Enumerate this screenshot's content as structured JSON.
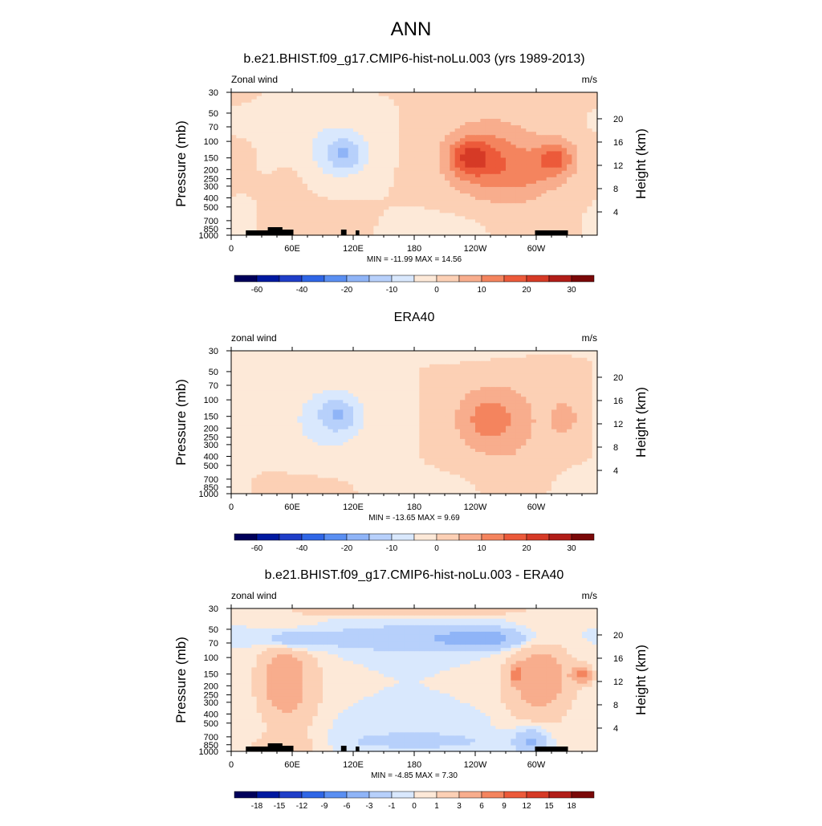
{
  "figure": {
    "title": "ANN"
  },
  "chart_data": [
    {
      "type": "heatmap",
      "title": "b.e21.BHIST.f09_g17.CMIP6-hist-noLu.003 (yrs 1989-2013)",
      "left_label": "Zonal wind",
      "right_label": "m/s",
      "ylabel": "Pressure (mb)",
      "y2label": "Height (km)",
      "xticks": [
        "0",
        "60E",
        "120E",
        "180",
        "120W",
        "60W"
      ],
      "yticks": [
        "30",
        "50",
        "70",
        "100",
        "150",
        "200",
        "250",
        "300",
        "400",
        "500",
        "700",
        "850",
        "1000"
      ],
      "y2ticks": [
        "20",
        "16",
        "12",
        "8",
        "4"
      ],
      "minmax": "MIN = -11.99  MAX =  14.56",
      "colorbar_labels": [
        "-60",
        "-40",
        "-20",
        "-10",
        "0",
        "10",
        "20",
        "30"
      ],
      "colorbar_levels": [
        -70,
        -60,
        -50,
        -40,
        -30,
        -20,
        -15,
        -10,
        -5,
        0,
        5,
        10,
        15,
        20,
        25,
        30,
        35
      ],
      "topography": true,
      "features": [
        {
          "lon": 165,
          "p": 25,
          "w": 150,
          "h": 10,
          "v": 1
        },
        {
          "lon": 20,
          "p": 62,
          "w": 60,
          "h": 14,
          "v": -3
        },
        {
          "lon": 100,
          "p": 118,
          "w": 98,
          "h": 54,
          "v": -6
        },
        {
          "lon": 112,
          "p": 135,
          "w": 48,
          "h": 24,
          "v": -11
        },
        {
          "lon": 265,
          "p": 158,
          "w": 158,
          "h": 86,
          "v": 4
        },
        {
          "lon": 252,
          "p": 152,
          "w": 105,
          "h": 50,
          "v": 8.5
        },
        {
          "lon": 234,
          "p": 148,
          "w": 52,
          "h": 26,
          "v": 13
        },
        {
          "lon": 320,
          "p": 148,
          "w": 48,
          "h": 26,
          "v": 13
        },
        {
          "lon": 290,
          "p": 220,
          "w": 90,
          "h": 36,
          "v": 6
        },
        {
          "lon": 60,
          "p": 340,
          "w": 38,
          "h": 40,
          "v": 3
        },
        {
          "lon": 75,
          "p": 715,
          "w": 132,
          "h": 36,
          "v": 3
        },
        {
          "lon": 10,
          "p": 720,
          "w": 42,
          "h": 26,
          "v": -4
        },
        {
          "lon": 210,
          "p": 860,
          "w": 132,
          "h": 26,
          "v": -3
        },
        {
          "lon": 275,
          "p": 870,
          "w": 42,
          "h": 22,
          "v": 3
        }
      ]
    },
    {
      "type": "heatmap",
      "title": "ERA40",
      "left_label": "zonal wind",
      "right_label": "m/s",
      "ylabel": "Pressure (mb)",
      "y2label": "Height (km)",
      "xticks": [
        "0",
        "60E",
        "120E",
        "180",
        "120W",
        "60W"
      ],
      "yticks": [
        "30",
        "50",
        "70",
        "100",
        "150",
        "200",
        "250",
        "300",
        "400",
        "500",
        "700",
        "850",
        "1000"
      ],
      "y2ticks": [
        "20",
        "16",
        "12",
        "8",
        "4"
      ],
      "minmax": "MIN = -13.65  MAX =   9.69",
      "colorbar_labels": [
        "-60",
        "-40",
        "-20",
        "-10",
        "0",
        "10",
        "20",
        "30"
      ],
      "colorbar_levels": [
        -70,
        -60,
        -50,
        -40,
        -30,
        -20,
        -15,
        -10,
        -5,
        0,
        5,
        10,
        15,
        20,
        25,
        30,
        35
      ],
      "topography": false,
      "features": [
        {
          "lon": 180,
          "p": 32,
          "w": 240,
          "h": 10,
          "v": -5
        },
        {
          "lon": 90,
          "p": 175,
          "w": 150,
          "h": 75,
          "v": -5.5
        },
        {
          "lon": 105,
          "p": 142,
          "w": 50,
          "h": 26,
          "v": -11
        },
        {
          "lon": 270,
          "p": 175,
          "w": 138,
          "h": 80,
          "v": 5.5
        },
        {
          "lon": 252,
          "p": 158,
          "w": 75,
          "h": 38,
          "v": 8
        },
        {
          "lon": 328,
          "p": 155,
          "w": 30,
          "h": 22,
          "v": 8
        },
        {
          "lon": 75,
          "p": 800,
          "w": 150,
          "h": 30,
          "v": 2.5
        },
        {
          "lon": 195,
          "p": 930,
          "w": 130,
          "h": 26,
          "v": -3
        },
        {
          "lon": 345,
          "p": 860,
          "w": 80,
          "h": 26,
          "v": -3
        },
        {
          "lon": 280,
          "p": 740,
          "w": 60,
          "h": 26,
          "v": 2.5
        }
      ]
    },
    {
      "type": "heatmap",
      "title": "b.e21.BHIST.f09_g17.CMIP6-hist-noLu.003 - ERA40",
      "left_label": "zonal wind",
      "right_label": "m/s",
      "ylabel": "Pressure (mb)",
      "y2label": "Height (km)",
      "xticks": [
        "0",
        "60E",
        "120E",
        "180",
        "120W",
        "60W"
      ],
      "yticks": [
        "30",
        "50",
        "70",
        "100",
        "150",
        "200",
        "250",
        "300",
        "400",
        "500",
        "700",
        "850",
        "1000"
      ],
      "y2ticks": [
        "20",
        "16",
        "12",
        "8",
        "4"
      ],
      "minmax": "MIN =  -4.85  MAX =   7.30",
      "colorbar_labels": [
        "-18",
        "-15",
        "-12",
        "-9",
        "-6",
        "-3",
        "-1",
        "0",
        "1",
        "3",
        "6",
        "9",
        "12",
        "15",
        "18"
      ],
      "colorbar_levels": [
        -21,
        -18,
        -15,
        -12,
        -9,
        -6,
        -3,
        -1,
        0,
        1,
        3,
        6,
        9,
        12,
        15,
        18,
        21
      ],
      "topography": true,
      "features": [
        {
          "lon": 180,
          "p": 32,
          "w": 260,
          "h": 6,
          "v": 2.5
        },
        {
          "lon": 180,
          "p": 62,
          "w": 260,
          "h": 18,
          "v": -2.5
        },
        {
          "lon": 60,
          "p": 64,
          "w": 70,
          "h": 14,
          "v": -3.5
        },
        {
          "lon": 250,
          "p": 62,
          "w": 100,
          "h": 14,
          "v": -3.5
        },
        {
          "lon": 60,
          "p": 200,
          "w": 80,
          "h": 80,
          "v": 2.2
        },
        {
          "lon": 300,
          "p": 190,
          "w": 90,
          "h": 70,
          "v": 2.2
        },
        {
          "lon": 50,
          "p": 170,
          "w": 52,
          "h": 48,
          "v": 3.5
        },
        {
          "lon": 305,
          "p": 165,
          "w": 62,
          "h": 40,
          "v": 3.5
        },
        {
          "lon": 280,
          "p": 150,
          "w": 14,
          "h": 12,
          "v": 7
        },
        {
          "lon": 345,
          "p": 150,
          "w": 24,
          "h": 12,
          "v": 6.5
        },
        {
          "lon": 180,
          "p": 480,
          "w": 230,
          "h": 18,
          "v": -0.5
        },
        {
          "lon": 180,
          "p": 770,
          "w": 230,
          "h": 14,
          "v": -1.5
        },
        {
          "lon": 295,
          "p": 770,
          "w": 40,
          "h": 20,
          "v": -3.5
        },
        {
          "lon": 50,
          "p": 880,
          "w": 90,
          "h": 16,
          "v": 2
        }
      ]
    }
  ]
}
